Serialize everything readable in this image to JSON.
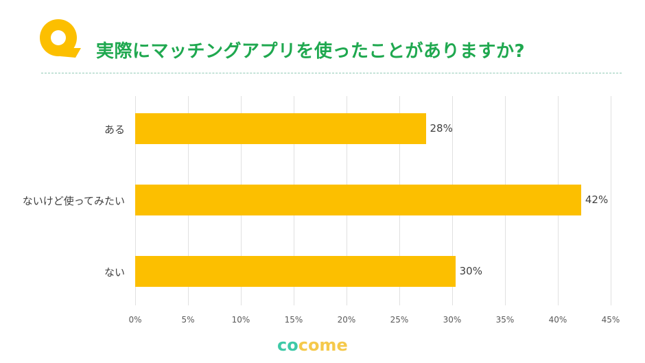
{
  "header": {
    "icon": "q-badge-icon",
    "title": "実際にマッチングアプリを使ったことがありますか?"
  },
  "colors": {
    "title": "#1fa84f",
    "bar": "#fcbf00",
    "q_icon": "#fcbf00",
    "divider": "#8fc9b4",
    "brand_teal": "#3ec9a7",
    "brand_yellow": "#f5c94b"
  },
  "chart_data": {
    "type": "bar",
    "orientation": "horizontal",
    "title": "実際にマッチングアプリを使ったことがありますか?",
    "categories": [
      "ある",
      "ないけど使ってみたい",
      "ない"
    ],
    "values": [
      28,
      42,
      30
    ],
    "value_labels": [
      "28%",
      "42%",
      "30%"
    ],
    "xlabel": "",
    "ylabel": "",
    "xlim": [
      0,
      45
    ],
    "x_ticks": [
      "0%",
      "5%",
      "10%",
      "15%",
      "20%",
      "25%",
      "30%",
      "35%",
      "40%",
      "45%"
    ],
    "grid": "vertical",
    "legend": "none"
  },
  "footer": {
    "brand_part1": "co",
    "brand_part2": "come"
  }
}
